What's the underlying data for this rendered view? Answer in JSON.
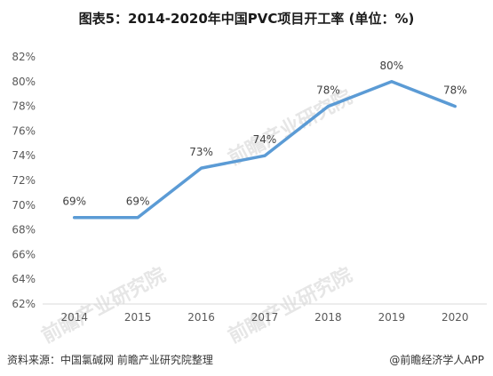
{
  "chart_data": {
    "type": "line",
    "title": "图表5：2014-2020年中国PVC项目开工率 (单位：%)",
    "categories": [
      "2014",
      "2015",
      "2016",
      "2017",
      "2018",
      "2019",
      "2020"
    ],
    "series": [
      {
        "values": [
          69,
          69,
          73,
          74,
          78,
          80,
          78
        ]
      }
    ],
    "data_labels": [
      "69%",
      "69%",
      "73%",
      "74%",
      "78%",
      "80%",
      "78%"
    ],
    "y_ticks": [
      "62%",
      "64%",
      "66%",
      "68%",
      "70%",
      "72%",
      "74%",
      "76%",
      "78%",
      "80%",
      "82%"
    ],
    "ylim": [
      62,
      82
    ],
    "grid": false,
    "line_color": "#5b9bd5",
    "xlabel": "",
    "ylabel": ""
  },
  "footer": {
    "source": "资料来源：中国氯碱网 前瞻产业研究院整理",
    "brand": "@前瞻经济学人APP"
  },
  "watermark": "前瞻产业研究院"
}
